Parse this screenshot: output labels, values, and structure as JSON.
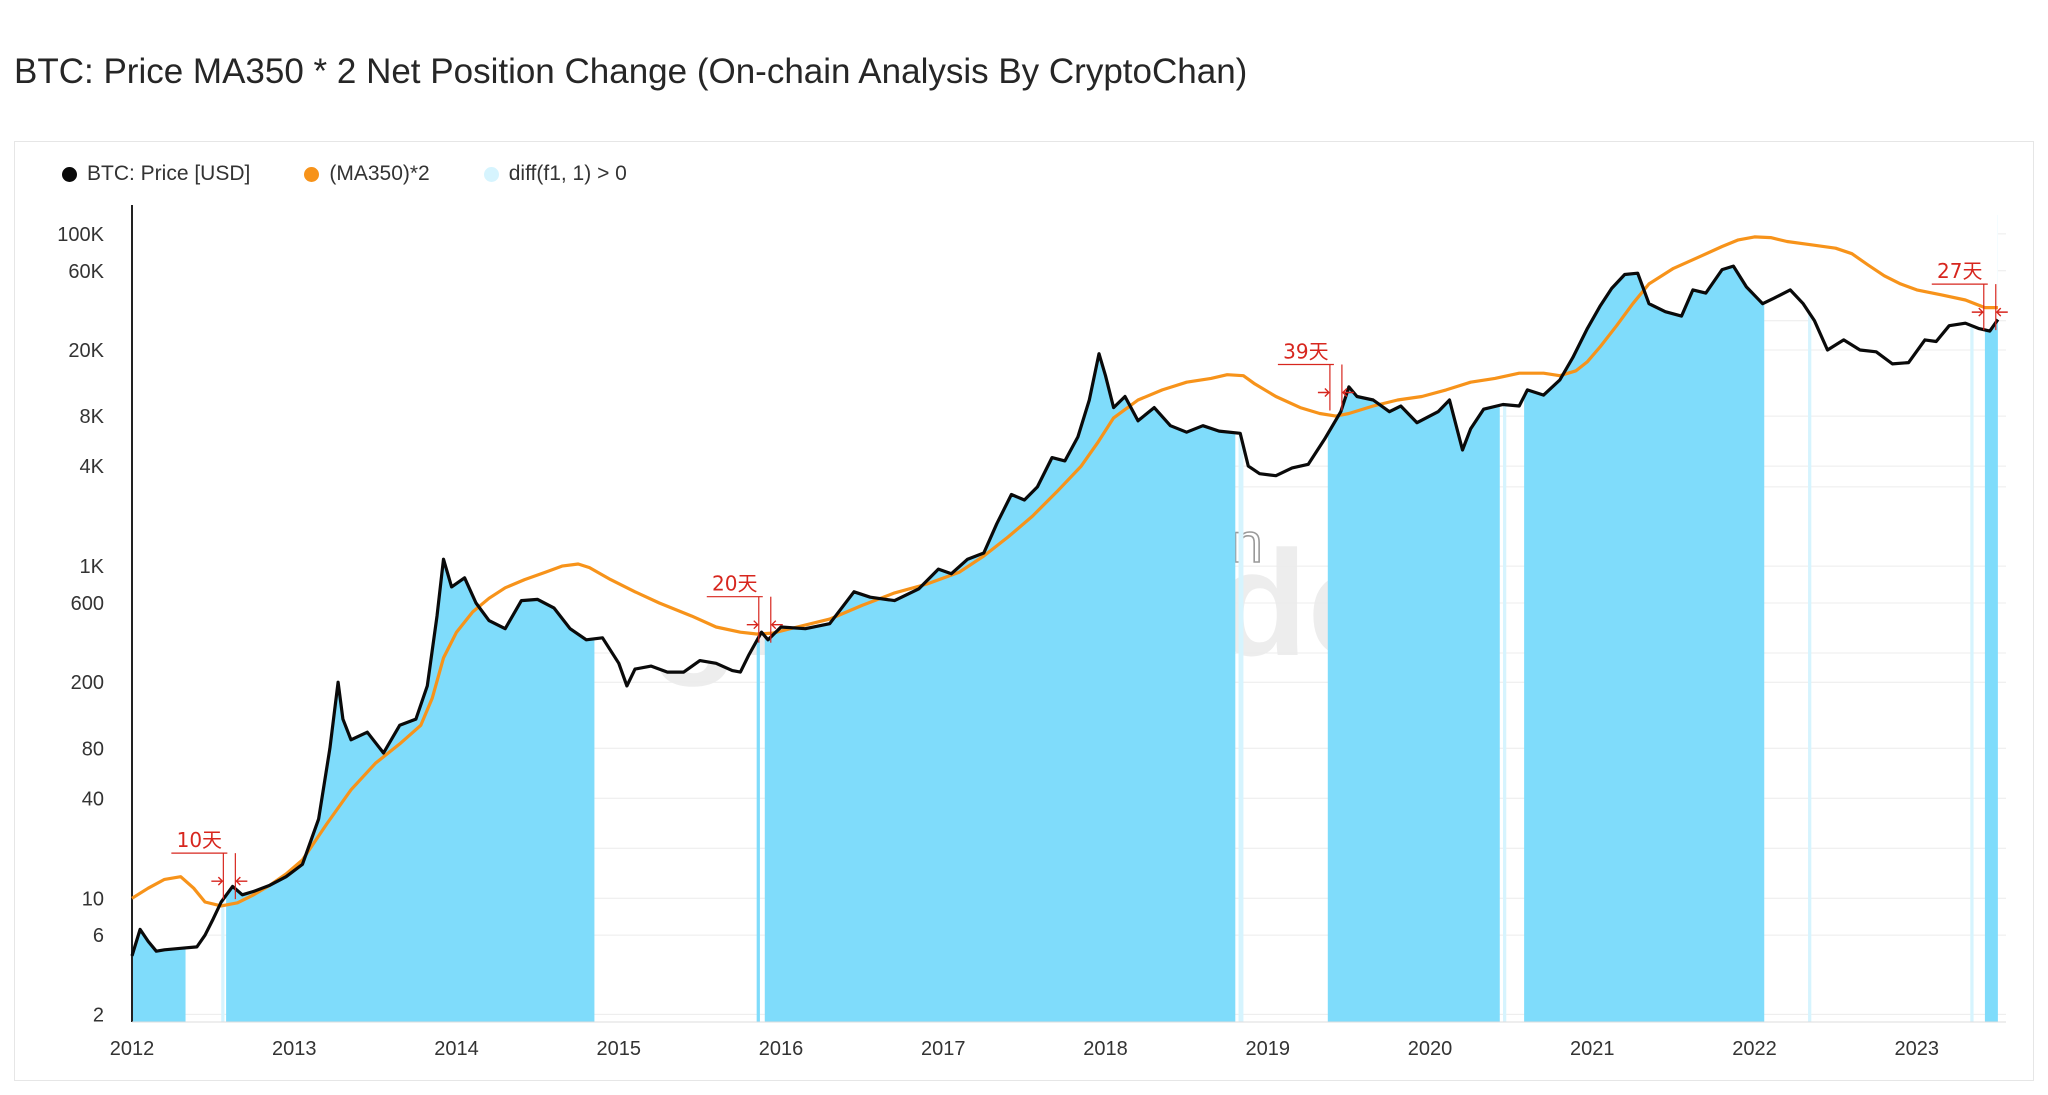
{
  "title": "BTC: Price MA350 * 2 Net Position Change (On-chain Analysis By CryptoChan)",
  "watermark": {
    "brand": "glassnode",
    "handle": "@CryptoChan"
  },
  "colors": {
    "price": "#0a0a0a",
    "ma": "#f7931a",
    "fill": "#7fdcfb",
    "fill_light": "#d6f4fe",
    "annotation": "#d7261e",
    "grid": "#ececec"
  },
  "chart_data": {
    "type": "line",
    "title": "BTC: Price MA350 * 2 Net Position Change (On-chain Analysis By CryptoChan)",
    "y_scale": "log",
    "ylim": [
      1.8,
      130000
    ],
    "xlim": [
      2012.0,
      2023.55
    ],
    "y_ticks": [
      {
        "value": 100000,
        "label": "100K"
      },
      {
        "value": 60000,
        "label": "60K"
      },
      {
        "value": 20000,
        "label": "20K"
      },
      {
        "value": 8000,
        "label": "8K"
      },
      {
        "value": 4000,
        "label": "4K"
      },
      {
        "value": 1000,
        "label": "1K"
      },
      {
        "value": 600,
        "label": "600"
      },
      {
        "value": 200,
        "label": "200"
      },
      {
        "value": 80,
        "label": "80"
      },
      {
        "value": 40,
        "label": "40"
      },
      {
        "value": 10,
        "label": "10"
      },
      {
        "value": 6,
        "label": "6"
      },
      {
        "value": 2,
        "label": "2"
      }
    ],
    "x_ticks": [
      {
        "value": 2012,
        "label": "2012"
      },
      {
        "value": 2013,
        "label": "2013"
      },
      {
        "value": 2014,
        "label": "2014"
      },
      {
        "value": 2015,
        "label": "2015"
      },
      {
        "value": 2016,
        "label": "2016"
      },
      {
        "value": 2017,
        "label": "2017"
      },
      {
        "value": 2018,
        "label": "2018"
      },
      {
        "value": 2019,
        "label": "2019"
      },
      {
        "value": 2020,
        "label": "2020"
      },
      {
        "value": 2021,
        "label": "2021"
      },
      {
        "value": 2022,
        "label": "2022"
      },
      {
        "value": 2023,
        "label": "2023"
      }
    ],
    "legend": [
      {
        "name": "BTC: Price [USD]",
        "color": "#0a0a0a"
      },
      {
        "name": "(MA350)*2",
        "color": "#f7931a"
      },
      {
        "name": "diff(f1, 1) > 0",
        "color": "#d6f4fe"
      }
    ],
    "legend_position": "top-left",
    "series": [
      {
        "name": "BTC: Price [USD]",
        "points": [
          [
            2012.0,
            4.5
          ],
          [
            2012.05,
            6.5
          ],
          [
            2012.1,
            5.5
          ],
          [
            2012.15,
            4.8
          ],
          [
            2012.2,
            4.9
          ],
          [
            2012.3,
            5.0
          ],
          [
            2012.4,
            5.1
          ],
          [
            2012.45,
            6.0
          ],
          [
            2012.5,
            7.5
          ],
          [
            2012.55,
            9.5
          ],
          [
            2012.62,
            11.8
          ],
          [
            2012.68,
            10.5
          ],
          [
            2012.75,
            11.0
          ],
          [
            2012.85,
            12.0
          ],
          [
            2012.95,
            13.5
          ],
          [
            2013.05,
            16.0
          ],
          [
            2013.15,
            30.0
          ],
          [
            2013.22,
            80.0
          ],
          [
            2013.27,
            200.0
          ],
          [
            2013.3,
            120.0
          ],
          [
            2013.35,
            90.0
          ],
          [
            2013.45,
            100.0
          ],
          [
            2013.55,
            75.0
          ],
          [
            2013.65,
            110.0
          ],
          [
            2013.75,
            120.0
          ],
          [
            2013.82,
            190.0
          ],
          [
            2013.88,
            500.0
          ],
          [
            2013.92,
            1100.0
          ],
          [
            2013.97,
            750.0
          ],
          [
            2014.05,
            850.0
          ],
          [
            2014.12,
            600.0
          ],
          [
            2014.2,
            470.0
          ],
          [
            2014.3,
            420.0
          ],
          [
            2014.4,
            620.0
          ],
          [
            2014.5,
            630.0
          ],
          [
            2014.6,
            560.0
          ],
          [
            2014.7,
            420.0
          ],
          [
            2014.8,
            360.0
          ],
          [
            2014.9,
            370.0
          ],
          [
            2015.0,
            260.0
          ],
          [
            2015.05,
            190.0
          ],
          [
            2015.1,
            240.0
          ],
          [
            2015.2,
            250.0
          ],
          [
            2015.3,
            230.0
          ],
          [
            2015.4,
            230.0
          ],
          [
            2015.5,
            270.0
          ],
          [
            2015.6,
            260.0
          ],
          [
            2015.7,
            235.0
          ],
          [
            2015.75,
            230.0
          ],
          [
            2015.8,
            290.0
          ],
          [
            2015.88,
            400.0
          ],
          [
            2015.92,
            360.0
          ],
          [
            2016.0,
            430.0
          ],
          [
            2016.15,
            420.0
          ],
          [
            2016.3,
            450.0
          ],
          [
            2016.45,
            700.0
          ],
          [
            2016.55,
            650.0
          ],
          [
            2016.7,
            620.0
          ],
          [
            2016.85,
            730.0
          ],
          [
            2016.97,
            960.0
          ],
          [
            2017.05,
            900.0
          ],
          [
            2017.15,
            1100.0
          ],
          [
            2017.25,
            1200.0
          ],
          [
            2017.33,
            1800.0
          ],
          [
            2017.42,
            2700.0
          ],
          [
            2017.5,
            2500.0
          ],
          [
            2017.58,
            3000.0
          ],
          [
            2017.67,
            4500.0
          ],
          [
            2017.75,
            4300.0
          ],
          [
            2017.83,
            6000.0
          ],
          [
            2017.9,
            10000.0
          ],
          [
            2017.96,
            19000.0
          ],
          [
            2018.0,
            14000.0
          ],
          [
            2018.05,
            9000.0
          ],
          [
            2018.12,
            10500.0
          ],
          [
            2018.2,
            7500.0
          ],
          [
            2018.3,
            9000.0
          ],
          [
            2018.4,
            7000.0
          ],
          [
            2018.5,
            6400.0
          ],
          [
            2018.6,
            7000.0
          ],
          [
            2018.7,
            6500.0
          ],
          [
            2018.83,
            6300.0
          ],
          [
            2018.88,
            4000.0
          ],
          [
            2018.95,
            3600.0
          ],
          [
            2019.05,
            3500.0
          ],
          [
            2019.15,
            3900.0
          ],
          [
            2019.25,
            4100.0
          ],
          [
            2019.35,
            5800.0
          ],
          [
            2019.45,
            8500.0
          ],
          [
            2019.5,
            12000.0
          ],
          [
            2019.55,
            10500.0
          ],
          [
            2019.65,
            10000.0
          ],
          [
            2019.75,
            8500.0
          ],
          [
            2019.82,
            9200.0
          ],
          [
            2019.92,
            7300.0
          ],
          [
            2020.05,
            8500.0
          ],
          [
            2020.12,
            10000.0
          ],
          [
            2020.2,
            5000.0
          ],
          [
            2020.25,
            6700.0
          ],
          [
            2020.33,
            8800.0
          ],
          [
            2020.45,
            9400.0
          ],
          [
            2020.55,
            9200.0
          ],
          [
            2020.6,
            11500.0
          ],
          [
            2020.7,
            10700.0
          ],
          [
            2020.8,
            13200.0
          ],
          [
            2020.88,
            18000.0
          ],
          [
            2020.97,
            27000.0
          ],
          [
            2021.05,
            37000.0
          ],
          [
            2021.12,
            47000.0
          ],
          [
            2021.2,
            57000.0
          ],
          [
            2021.28,
            58000.0
          ],
          [
            2021.35,
            38000.0
          ],
          [
            2021.45,
            34000.0
          ],
          [
            2021.55,
            32000.0
          ],
          [
            2021.62,
            46000.0
          ],
          [
            2021.7,
            44000.0
          ],
          [
            2021.8,
            61000.0
          ],
          [
            2021.87,
            64000.0
          ],
          [
            2021.95,
            48000.0
          ],
          [
            2022.05,
            38000.0
          ],
          [
            2022.12,
            41000.0
          ],
          [
            2022.22,
            46000.0
          ],
          [
            2022.3,
            38000.0
          ],
          [
            2022.37,
            30000.0
          ],
          [
            2022.45,
            20000.0
          ],
          [
            2022.55,
            23000.0
          ],
          [
            2022.65,
            20000.0
          ],
          [
            2022.75,
            19500.0
          ],
          [
            2022.85,
            16500.0
          ],
          [
            2022.95,
            16800.0
          ],
          [
            2023.05,
            23000.0
          ],
          [
            2023.12,
            22500.0
          ],
          [
            2023.2,
            28000.0
          ],
          [
            2023.3,
            29000.0
          ],
          [
            2023.38,
            27000.0
          ],
          [
            2023.45,
            26000.0
          ],
          [
            2023.5,
            30500.0
          ]
        ]
      },
      {
        "name": "(MA350)*2",
        "points": [
          [
            2012.0,
            10.0
          ],
          [
            2012.1,
            11.5
          ],
          [
            2012.2,
            13.0
          ],
          [
            2012.3,
            13.5
          ],
          [
            2012.38,
            11.5
          ],
          [
            2012.45,
            9.5
          ],
          [
            2012.55,
            9.0
          ],
          [
            2012.65,
            9.4
          ],
          [
            2012.75,
            10.5
          ],
          [
            2012.85,
            12.0
          ],
          [
            2012.95,
            14.0
          ],
          [
            2013.05,
            17.0
          ],
          [
            2013.2,
            28.0
          ],
          [
            2013.35,
            45.0
          ],
          [
            2013.5,
            65.0
          ],
          [
            2013.65,
            85.0
          ],
          [
            2013.78,
            110.0
          ],
          [
            2013.85,
            160.0
          ],
          [
            2013.92,
            280.0
          ],
          [
            2014.0,
            400.0
          ],
          [
            2014.1,
            530.0
          ],
          [
            2014.2,
            640.0
          ],
          [
            2014.3,
            740.0
          ],
          [
            2014.42,
            830.0
          ],
          [
            2014.55,
            920.0
          ],
          [
            2014.65,
            1000.0
          ],
          [
            2014.75,
            1030.0
          ],
          [
            2014.82,
            980.0
          ],
          [
            2014.95,
            830.0
          ],
          [
            2015.1,
            700.0
          ],
          [
            2015.25,
            600.0
          ],
          [
            2015.45,
            500.0
          ],
          [
            2015.6,
            430.0
          ],
          [
            2015.75,
            400.0
          ],
          [
            2015.85,
            390.0
          ],
          [
            2015.95,
            395.0
          ],
          [
            2016.1,
            430.0
          ],
          [
            2016.3,
            480.0
          ],
          [
            2016.5,
            580.0
          ],
          [
            2016.7,
            690.0
          ],
          [
            2016.9,
            780.0
          ],
          [
            2017.1,
            920.0
          ],
          [
            2017.25,
            1150.0
          ],
          [
            2017.4,
            1500.0
          ],
          [
            2017.55,
            2000.0
          ],
          [
            2017.7,
            2800.0
          ],
          [
            2017.85,
            4000.0
          ],
          [
            2017.95,
            5500.0
          ],
          [
            2018.05,
            7800.0
          ],
          [
            2018.2,
            10000.0
          ],
          [
            2018.35,
            11500.0
          ],
          [
            2018.5,
            12800.0
          ],
          [
            2018.65,
            13500.0
          ],
          [
            2018.75,
            14200.0
          ],
          [
            2018.85,
            14000.0
          ],
          [
            2018.92,
            12500.0
          ],
          [
            2019.05,
            10500.0
          ],
          [
            2019.2,
            9000.0
          ],
          [
            2019.32,
            8300.0
          ],
          [
            2019.42,
            8000.0
          ],
          [
            2019.5,
            8300.0
          ],
          [
            2019.65,
            9200.0
          ],
          [
            2019.8,
            10000.0
          ],
          [
            2019.95,
            10500.0
          ],
          [
            2020.1,
            11500.0
          ],
          [
            2020.25,
            12800.0
          ],
          [
            2020.4,
            13500.0
          ],
          [
            2020.55,
            14500.0
          ],
          [
            2020.7,
            14500.0
          ],
          [
            2020.8,
            14000.0
          ],
          [
            2020.9,
            15000.0
          ],
          [
            2020.97,
            17000.0
          ],
          [
            2021.05,
            21000.0
          ],
          [
            2021.15,
            28000.0
          ],
          [
            2021.25,
            38000.0
          ],
          [
            2021.35,
            50000.0
          ],
          [
            2021.5,
            62000.0
          ],
          [
            2021.65,
            72000.0
          ],
          [
            2021.8,
            84000.0
          ],
          [
            2021.9,
            92000.0
          ],
          [
            2022.0,
            96000.0
          ],
          [
            2022.1,
            95000.0
          ],
          [
            2022.2,
            90000.0
          ],
          [
            2022.35,
            86000.0
          ],
          [
            2022.5,
            82000.0
          ],
          [
            2022.6,
            76000.0
          ],
          [
            2022.7,
            65000.0
          ],
          [
            2022.8,
            56000.0
          ],
          [
            2022.9,
            50000.0
          ],
          [
            2023.0,
            46000.0
          ],
          [
            2023.15,
            43000.0
          ],
          [
            2023.3,
            40000.0
          ],
          [
            2023.42,
            36000.0
          ],
          [
            2023.5,
            36000.0
          ]
        ]
      }
    ],
    "shaded_periods": [
      {
        "start": 2012.0,
        "end": 2012.33,
        "shade": "strong"
      },
      {
        "start": 2012.55,
        "end": 2012.57,
        "shade": "light"
      },
      {
        "start": 2012.58,
        "end": 2014.85,
        "shade": "strong"
      },
      {
        "start": 2015.85,
        "end": 2015.87,
        "shade": "strong"
      },
      {
        "start": 2015.9,
        "end": 2018.8,
        "shade": "strong"
      },
      {
        "start": 2018.82,
        "end": 2018.85,
        "shade": "light"
      },
      {
        "start": 2019.37,
        "end": 2020.43,
        "shade": "strong"
      },
      {
        "start": 2020.45,
        "end": 2020.47,
        "shade": "light"
      },
      {
        "start": 2020.58,
        "end": 2022.06,
        "shade": "strong"
      },
      {
        "start": 2022.33,
        "end": 2022.35,
        "shade": "light"
      },
      {
        "start": 2023.33,
        "end": 2023.35,
        "shade": "light"
      },
      {
        "start": 2023.42,
        "end": 2023.5,
        "shade": "strong"
      }
    ],
    "annotations": [
      {
        "label": "10天",
        "date": 2012.6,
        "value": 12.0
      },
      {
        "label": "20天",
        "date": 2015.9,
        "value": 420.0
      },
      {
        "label": "39天",
        "date": 2019.42,
        "value": 10500.0
      },
      {
        "label": "27天",
        "date": 2023.45,
        "value": 32000.0
      }
    ],
    "grid": true
  }
}
